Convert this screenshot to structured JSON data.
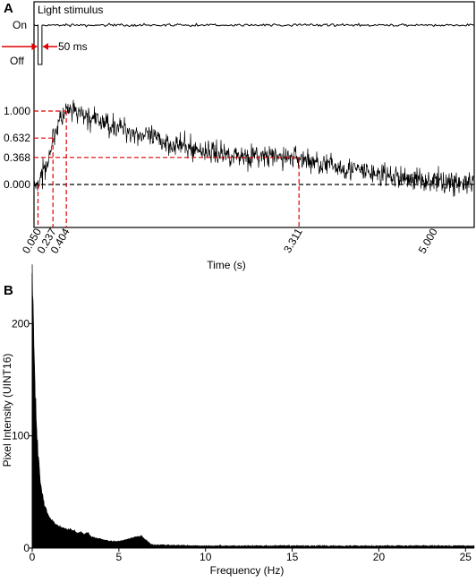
{
  "panels": {
    "a_label": "A",
    "b_label": "B"
  },
  "chart_data": [
    {
      "type": "line",
      "panel": "A",
      "title": "",
      "xlabel": "Time (s)",
      "ylabel": "",
      "xlim": [
        0,
        5.5
      ],
      "ylim": [
        -0.3,
        1.5
      ],
      "x_ticks": [
        "0.050",
        "0.237",
        "0.404",
        "3.311",
        "5.000"
      ],
      "x_tick_values": [
        0.05,
        0.237,
        0.404,
        3.311,
        5.0
      ],
      "y_ticks": [
        "1.000",
        "0.632",
        "0.368",
        "0.000"
      ],
      "y_tick_values": [
        1.0,
        0.632,
        0.368,
        0.0
      ],
      "stimulus": {
        "label": "Light stimulus",
        "on_label": "On",
        "off_label": "Off",
        "duration_label": "50 ms",
        "off_start": 0.05,
        "off_end": 0.1
      },
      "reference_color": "#e00000",
      "trace_color": "#000000",
      "series": [
        {
          "x": [
            0.05,
            0.1,
            0.2,
            0.237,
            0.3,
            0.404,
            0.5,
            0.7,
            1.0,
            1.5,
            2.0,
            2.5,
            3.0,
            3.311,
            3.5,
            4.0,
            4.5,
            5.0,
            5.5
          ],
          "y": [
            0.0,
            0.1,
            0.45,
            0.632,
            0.82,
            1.0,
            0.98,
            0.9,
            0.8,
            0.62,
            0.48,
            0.4,
            0.37,
            0.368,
            0.3,
            0.2,
            0.1,
            0.05,
            0.0
          ]
        }
      ]
    },
    {
      "type": "area",
      "panel": "B",
      "title": "",
      "xlabel": "Frequency (Hz)",
      "ylabel": "Pixel Intensity (UINT16)",
      "xlim": [
        0,
        25.5
      ],
      "ylim": [
        0,
        245
      ],
      "x_ticks": [
        "0",
        "5",
        "10",
        "15",
        "20",
        "25"
      ],
      "x_tick_values": [
        0,
        5,
        10,
        15,
        20,
        25
      ],
      "y_ticks": [
        "0",
        "100",
        "200"
      ],
      "y_tick_values": [
        0,
        100,
        200
      ],
      "fill_color": "#000000",
      "series": [
        {
          "x": [
            0,
            0.05,
            0.15,
            0.3,
            0.5,
            0.7,
            1.0,
            1.3,
            1.6,
            2.0,
            2.4,
            2.6,
            2.8,
            3.0,
            3.2,
            3.4,
            4.0,
            4.5,
            5.0,
            5.5,
            6.0,
            6.3,
            6.5,
            6.8,
            7.0,
            8.0,
            10.0,
            15.0,
            20.0,
            25.5
          ],
          "y": [
            245,
            210,
            150,
            90,
            55,
            38,
            27,
            22,
            19,
            17,
            16,
            13,
            15,
            12,
            14,
            10,
            8,
            6,
            6,
            8,
            10,
            11,
            8,
            4,
            3,
            2.5,
            2,
            2,
            2,
            2
          ]
        }
      ]
    }
  ]
}
